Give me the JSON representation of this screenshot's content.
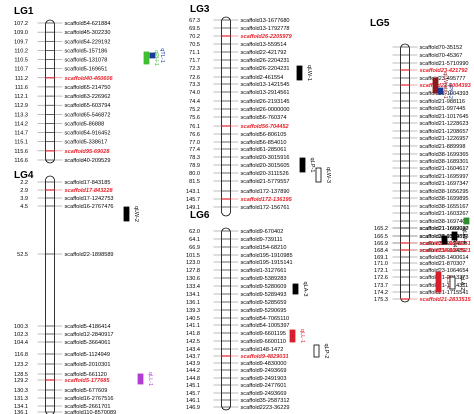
{
  "colors": {
    "link": "#555555",
    "hl": "#e8212a",
    "black": "#000000",
    "chrom": "#ffffff",
    "green": "#3fbf2f",
    "blue": "#1b3a9a",
    "red": "#d81e2a",
    "darkred": "#8b1a1a",
    "purple": "#b23cd6",
    "darkgreen": "#2e8b2e"
  },
  "groups": [
    {
      "title": "LG1",
      "rows": [
        {
          "pos": "107.2",
          "name": "scaffold54-621884"
        },
        {
          "pos": "109.0",
          "name": "scaffold45-302230"
        },
        {
          "pos": "109.7",
          "name": "scaffold54-229192"
        },
        {
          "pos": "110.2",
          "name": "scaffold5-157186"
        },
        {
          "pos": "110.5",
          "name": "scaffold5-131078"
        },
        {
          "pos": "110.7",
          "name": "scaffold5-169651"
        },
        {
          "pos": "111.2",
          "name": "scaffold40-460606",
          "hl": true
        },
        {
          "pos": "111.6",
          "name": "scaffold65-214750"
        },
        {
          "pos": "112.1",
          "name": "scaffold63-226962"
        },
        {
          "pos": "112.9",
          "name": "scaffold65-603794"
        },
        {
          "pos": "113.3",
          "name": "scaffold65-546872"
        },
        {
          "pos": "114.2",
          "name": "scaffold5-86888"
        },
        {
          "pos": "114.7",
          "name": "scaffold54-916452"
        },
        {
          "pos": "115.1",
          "name": "scaffold5-338617"
        },
        {
          "pos": "115.6",
          "name": "scaffold95-69028",
          "hl": true
        },
        {
          "pos": "116.6",
          "name": "scaffold40-209529"
        }
      ]
    },
    {
      "title": "LG3",
      "rows": [
        {
          "pos": "67.3",
          "name": "scaffold13-1677680"
        },
        {
          "pos": "69.5",
          "name": "scaffold13-1792778"
        },
        {
          "pos": "70.2",
          "name": "scaffold26-2205979",
          "hl": true
        },
        {
          "pos": "70.5",
          "name": "scaffold13-559514"
        },
        {
          "pos": "71.1",
          "name": "scaffold22-421792"
        },
        {
          "pos": "71.7",
          "name": "scaffold26-2204231"
        },
        {
          "pos": "72.3",
          "name": "scaffold26-2204231"
        },
        {
          "pos": "72.6",
          "name": "scaffold2-461554"
        },
        {
          "pos": "73.3",
          "name": "scaffold13-1421545"
        },
        {
          "pos": "74.0",
          "name": "scaffold13-2914561"
        },
        {
          "pos": "74.4",
          "name": "scaffold26-2193145"
        },
        {
          "pos": "75.2",
          "name": "scaffold26-0000000"
        },
        {
          "pos": "75.6",
          "name": "scaffold56-760374"
        },
        {
          "pos": "76.1",
          "name": "scaffold56-704452",
          "hl": true
        },
        {
          "pos": "76.6",
          "name": "scaffold56-806105"
        },
        {
          "pos": "77.0",
          "name": "scaffold56-854010"
        },
        {
          "pos": "77.4",
          "name": "scaffold61-285061"
        },
        {
          "pos": "78.3",
          "name": "scaffold20-3015916"
        },
        {
          "pos": "78.9",
          "name": "scaffold20-3015605"
        },
        {
          "pos": "80.0",
          "name": "scaffold20-3111526"
        },
        {
          "pos": "81.5",
          "name": "scaffold21-5779557"
        },
        {
          "pos": "143.1",
          "name": "scaffold172-137890"
        },
        {
          "pos": "145.7",
          "name": "scaffold172-136195",
          "hl": true
        },
        {
          "pos": "149.1",
          "name": "scaffold172-156761"
        }
      ]
    },
    {
      "title": "LG4",
      "rows": [
        {
          "pos": "2.2",
          "name": "scaffold17-843185"
        },
        {
          "pos": "2.9",
          "name": "scaffold17-843228",
          "hl": true
        },
        {
          "pos": "3.9",
          "name": "scaffold17-1242753"
        },
        {
          "pos": "4.5",
          "name": "scaffold16-2767476"
        },
        {
          "pos": "52.5",
          "name": "scaffold22-1898589"
        },
        {
          "pos": "100.3",
          "name": "scaffold5-4186414"
        },
        {
          "pos": "102.3",
          "name": "scaffold12-2840917"
        },
        {
          "pos": "104.4",
          "name": "scaffold5-3664061"
        },
        {
          "pos": "116.8",
          "name": "scaffold5-1124949"
        },
        {
          "pos": "123.2",
          "name": "scaffold5-2010301"
        },
        {
          "pos": "128.5",
          "name": "scaffold5-661120"
        },
        {
          "pos": "129.2",
          "name": "scaffold5-177685",
          "hl": true
        },
        {
          "pos": "130.3",
          "name": "scaffold5-677609"
        },
        {
          "pos": "131.3",
          "name": "scaffold16-2767516"
        },
        {
          "pos": "134.1",
          "name": "scaffold5-2661701"
        },
        {
          "pos": "136.1",
          "name": "scaffold110-8570089"
        }
      ]
    },
    {
      "title": "LG5",
      "rows": [
        {
          "pos": "",
          "name": "scaffold70-35152"
        },
        {
          "pos": "",
          "name": "scaffold70-45367"
        },
        {
          "pos": "",
          "name": "scaffold21-5710990"
        },
        {
          "pos": "",
          "name": "scaffold23-421792",
          "hl": true
        },
        {
          "pos": "",
          "name": "scaffold23-495777"
        },
        {
          "pos": "",
          "name": "scaffold21-1004393",
          "hl": true
        },
        {
          "pos": "",
          "name": "scaffold21-1004393"
        },
        {
          "pos": "",
          "name": "scaffold21-988116"
        },
        {
          "pos": "",
          "name": "scaffold21-997445"
        },
        {
          "pos": "",
          "name": "scaffold21-1017645"
        },
        {
          "pos": "",
          "name": "scaffold21-1228623"
        },
        {
          "pos": "",
          "name": "scaffold21-1208657"
        },
        {
          "pos": "",
          "name": "scaffold21-1226957"
        },
        {
          "pos": "",
          "name": "scaffold21-889998"
        },
        {
          "pos": "",
          "name": "scaffold38-1699365"
        },
        {
          "pos": "",
          "name": "scaffold38-1689301"
        },
        {
          "pos": "",
          "name": "scaffold21-1604617"
        },
        {
          "pos": "",
          "name": "scaffold21-1695997"
        },
        {
          "pos": "",
          "name": "scaffold21-1697347"
        },
        {
          "pos": "",
          "name": "scaffold38-1656295"
        },
        {
          "pos": "",
          "name": "scaffold38-1699895"
        },
        {
          "pos": "",
          "name": "scaffold38-1655167"
        },
        {
          "pos": "",
          "name": "scaffold21-1603267"
        },
        {
          "pos": "",
          "name": "scaffold38-1697407"
        },
        {
          "pos": "",
          "name": "scaffold21-1699927"
        },
        {
          "pos": "",
          "name": "scaffold21-913489"
        },
        {
          "pos": "",
          "name": "scaffold21-913489"
        },
        {
          "pos": "",
          "name": "scaffold21-913489"
        },
        {
          "pos": "165.2",
          "name": "scaffold21-1662080"
        },
        {
          "pos": "166.5",
          "name": "scaffold38-1599573"
        },
        {
          "pos": "166.9",
          "name": "scaffold21-1665751",
          "hl": true
        },
        {
          "pos": "168.4",
          "name": "scaffold38-1607521",
          "hl": true
        },
        {
          "pos": "169.1",
          "name": "scaffold38-1400614"
        },
        {
          "pos": "171.0",
          "name": "scaffold21-870307"
        },
        {
          "pos": "172.1",
          "name": "scaffold23-1064654"
        },
        {
          "pos": "172.6",
          "name": "scaffold21-2013373"
        },
        {
          "pos": "173.7",
          "name": "scaffold21-1714311"
        },
        {
          "pos": "174.2",
          "name": "scaffold21-1715541"
        },
        {
          "pos": "175.3",
          "name": "scaffold21-2833515",
          "hl": true
        }
      ]
    },
    {
      "title": "LG6",
      "rows": [
        {
          "pos": "62.0",
          "name": "scaffold9-670402"
        },
        {
          "pos": "64.1",
          "name": "scaffold9-739111"
        },
        {
          "pos": "66.9",
          "name": "scaffold154-68210"
        },
        {
          "pos": "101.5",
          "name": "scaffold195-1910985"
        },
        {
          "pos": "123.0",
          "name": "scaffold195-1915141"
        },
        {
          "pos": "127.8",
          "name": "scaffold1-3127661"
        },
        {
          "pos": "130.6",
          "name": "scaffold9-5389283"
        },
        {
          "pos": "133.4",
          "name": "scaffold9-5280609"
        },
        {
          "pos": "134.1",
          "name": "scaffold9-5289493"
        },
        {
          "pos": "136.1",
          "name": "scaffold9-5285659"
        },
        {
          "pos": "139.3",
          "name": "scaffold9-5290695"
        },
        {
          "pos": "140.5",
          "name": "scaffold54-7065110"
        },
        {
          "pos": "141.1",
          "name": "scaffold54-1005397"
        },
        {
          "pos": "141.8",
          "name": "scaffold9-6601195"
        },
        {
          "pos": "142.5",
          "name": "scaffold9-6600110"
        },
        {
          "pos": "143.4",
          "name": "scaffold148-1472"
        },
        {
          "pos": "143.7",
          "name": "scaffold9-4829031",
          "hl": true
        },
        {
          "pos": "143.9",
          "name": "scaffold9-4830000"
        },
        {
          "pos": "144.2",
          "name": "scaffold9-2493669"
        },
        {
          "pos": "144.8",
          "name": "scaffold9-2491903"
        },
        {
          "pos": "145.1",
          "name": "scaffold9-2477601"
        },
        {
          "pos": "145.7",
          "name": "scaffold9-2493669"
        },
        {
          "pos": "146.1",
          "name": "scaffold35-2587312"
        },
        {
          "pos": "146.9",
          "name": "scaffold2223-36229"
        }
      ]
    }
  ],
  "qtls": [
    {
      "label": "qPH-1",
      "color": "green"
    },
    {
      "label": "qTL-1",
      "color": "blue"
    },
    {
      "label": "qLW-1",
      "color": "black"
    },
    {
      "label": "qLP-1",
      "color": "black"
    },
    {
      "label": "qLW-2",
      "color": "black"
    },
    {
      "label": "qLW-3",
      "color": "black"
    },
    {
      "label": "qLA-3",
      "color": "black"
    },
    {
      "label": "qLL-1",
      "color": "red"
    },
    {
      "label": "qLP-2",
      "color": "black"
    },
    {
      "label": "qLL-1",
      "color": "purple"
    },
    {
      "label": "qLWratio-1",
      "color": "darkred"
    },
    {
      "label": "qPH-2",
      "color": "blue"
    },
    {
      "label": "qPAS-1",
      "color": "darkgreen"
    },
    {
      "label": "qLW-4",
      "color": "black"
    },
    {
      "label": "qLA-4",
      "color": "black"
    },
    {
      "label": "qLL-2",
      "color": "red"
    },
    {
      "label": "qLA-2",
      "color": "black"
    }
  ]
}
